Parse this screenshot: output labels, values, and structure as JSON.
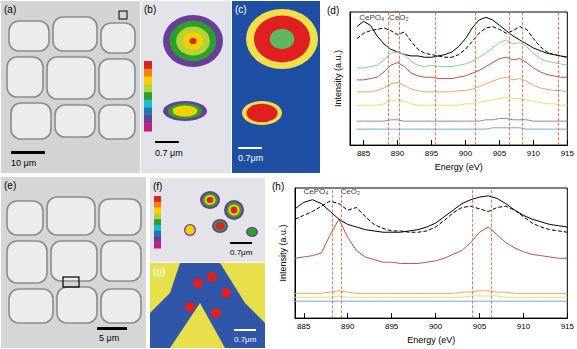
{
  "panels": [
    {
      "label": "(a)",
      "scale_bar": "10 μm"
    },
    {
      "label": "(b)",
      "scale_bar": "0.7 μm"
    },
    {
      "label": "(c)",
      "scale_bar": "0.7μm"
    },
    {
      "label": "(e)",
      "scale_bar": "5 μm"
    },
    {
      "label": "(f)",
      "scale_bar": "0.7μm"
    },
    {
      "label": "(g)",
      "scale_bar": "0.7μm"
    }
  ],
  "chart_data": [
    {
      "type": "line",
      "title": "(d)",
      "x_label": "Energy (eV)",
      "y_label": "Intensity (a.u.)",
      "x": [
        884,
        885,
        886,
        887,
        888,
        889,
        890,
        891,
        892,
        893,
        894,
        895,
        896,
        897,
        898,
        899,
        900,
        901,
        902,
        903,
        904,
        905,
        906,
        907,
        908,
        909,
        910,
        911,
        912,
        913,
        914,
        915
      ],
      "xlim": [
        883,
        915
      ],
      "xticks": [
        885,
        890,
        895,
        900,
        905,
        910,
        915
      ],
      "ylim": [
        0,
        10
      ],
      "tick_labels": "x",
      "grid": false,
      "series": [
        {
          "color": "#000000",
          "line_style": "solid",
          "values": [
            8.9,
            9.3,
            9.0,
            8.2,
            7.6,
            7.2,
            7.0,
            6.8,
            6.7,
            6.7,
            6.6,
            6.6,
            6.7,
            6.8,
            7.0,
            7.4,
            8.0,
            8.8,
            9.4,
            9.6,
            9.4,
            9.0,
            8.6,
            8.2,
            7.9,
            7.6,
            7.3,
            7.1,
            6.9,
            6.8,
            6.7,
            6.6
          ]
        },
        {
          "color": "#000000",
          "line_style": "dashed",
          "values": [
            8.0,
            8.4,
            8.6,
            8.7,
            8.8,
            8.6,
            8.3,
            8.5,
            7.8,
            7.2,
            6.9,
            6.8,
            6.7,
            6.6,
            6.6,
            6.8,
            7.2,
            7.8,
            8.4,
            8.8,
            8.9,
            8.7,
            8.4,
            8.6,
            8.9,
            8.7,
            8.0,
            7.4,
            7.0,
            6.8,
            6.7,
            6.6
          ]
        },
        {
          "color": "#86d486",
          "line_style": "solid",
          "values": [
            5.8,
            5.8,
            5.9,
            6.0,
            6.4,
            6.9,
            7.0,
            6.8,
            6.3,
            6.0,
            5.9,
            6.0,
            5.9,
            5.9,
            5.9,
            6.0,
            6.1,
            6.3,
            6.6,
            6.9,
            7.3,
            7.7,
            7.9,
            7.6,
            7.7,
            7.4,
            6.9,
            6.5,
            6.3,
            6.2,
            6.1,
            6.0
          ]
        },
        {
          "color": "#c0504d",
          "line_style": "solid",
          "values": [
            4.9,
            4.9,
            5.0,
            5.1,
            5.5,
            6.0,
            6.2,
            5.9,
            5.4,
            5.2,
            5.1,
            5.1,
            5.0,
            5.0,
            5.0,
            5.1,
            5.2,
            5.4,
            5.6,
            5.9,
            6.2,
            6.5,
            6.6,
            6.4,
            6.5,
            6.2,
            5.8,
            5.5,
            5.3,
            5.2,
            5.1,
            5.1
          ]
        },
        {
          "color": "#f4a460",
          "line_style": "solid",
          "values": [
            4.0,
            4.0,
            4.0,
            4.1,
            4.3,
            4.6,
            4.7,
            4.5,
            4.2,
            4.1,
            4.0,
            4.0,
            4.0,
            4.0,
            4.0,
            4.1,
            4.1,
            4.2,
            4.4,
            4.6,
            4.8,
            5.0,
            5.1,
            4.9,
            5.0,
            4.8,
            4.5,
            4.3,
            4.2,
            4.1,
            4.1,
            4.0
          ]
        },
        {
          "color": "#e8e070",
          "line_style": "solid",
          "values": [
            3.0,
            3.0,
            3.0,
            3.0,
            3.1,
            3.3,
            3.4,
            3.3,
            3.1,
            3.0,
            3.0,
            3.0,
            3.0,
            3.0,
            3.0,
            3.0,
            3.1,
            3.1,
            3.2,
            3.3,
            3.4,
            3.5,
            3.6,
            3.5,
            3.5,
            3.4,
            3.3,
            3.2,
            3.1,
            3.1,
            3.0,
            3.0
          ]
        },
        {
          "color": "#9a7fc8",
          "line_style": "solid",
          "values": [
            1.8,
            1.8,
            1.8,
            1.8,
            1.8,
            1.9,
            1.9,
            1.8,
            1.8,
            1.8,
            1.8,
            1.8,
            1.8,
            1.8,
            1.8,
            1.8,
            1.8,
            1.8,
            1.8,
            1.9,
            1.9,
            2.0,
            2.0,
            1.9,
            1.9,
            1.9,
            1.8,
            1.8,
            1.8,
            1.8,
            1.8,
            1.8
          ]
        },
        {
          "color": "#6fa8dc",
          "line_style": "solid",
          "values": [
            1.2,
            1.2,
            1.2,
            1.2,
            1.2,
            1.2,
            1.2,
            1.2,
            1.2,
            1.2,
            1.2,
            1.2,
            1.2,
            1.2,
            1.2,
            1.2,
            1.2,
            1.2,
            1.2,
            1.2,
            1.3,
            1.3,
            1.3,
            1.3,
            1.3,
            1.2,
            1.2,
            1.2,
            1.2,
            1.2,
            1.2,
            1.2
          ]
        }
      ],
      "reference_lines": [
        888.6,
        890.2,
        895.5,
        901.5,
        906.5,
        908.4,
        913.6
      ],
      "annotations": [
        {
          "text": "CePO₄",
          "x": 886.2,
          "y": 9.6
        },
        {
          "text": "CeO₂",
          "x": 890.2,
          "y": 9.6
        }
      ]
    },
    {
      "type": "line",
      "title": "(h)",
      "x_label": "Energy (eV)",
      "y_label": "Intensity (a.u.)",
      "x": [
        884,
        885,
        886,
        887,
        888,
        889,
        890,
        891,
        892,
        893,
        894,
        895,
        896,
        897,
        898,
        899,
        900,
        901,
        902,
        903,
        904,
        905,
        906,
        907,
        908,
        909,
        910,
        911,
        912,
        913,
        914,
        915
      ],
      "xlim": [
        884,
        915
      ],
      "xticks": [
        885,
        890,
        895,
        900,
        905,
        910,
        915
      ],
      "ylim": [
        0,
        10
      ],
      "tick_labels": "x",
      "grid": false,
      "series": [
        {
          "color": "#000000",
          "line_style": "solid",
          "values": [
            8.4,
            8.9,
            9.1,
            8.8,
            8.2,
            7.6,
            7.2,
            7.0,
            6.8,
            6.7,
            6.6,
            6.6,
            6.6,
            6.7,
            6.8,
            7.0,
            7.3,
            7.8,
            8.3,
            8.8,
            9.1,
            9.3,
            9.4,
            9.2,
            8.8,
            8.3,
            7.9,
            7.6,
            7.4,
            7.2,
            7.1,
            7.0
          ]
        },
        {
          "color": "#000000",
          "line_style": "dashed",
          "values": [
            7.6,
            7.9,
            8.2,
            8.6,
            9.0,
            8.8,
            8.3,
            8.5,
            7.8,
            7.2,
            6.9,
            6.7,
            6.7,
            6.6,
            6.6,
            6.7,
            7.0,
            7.5,
            8.1,
            8.5,
            8.6,
            8.4,
            8.2,
            8.5,
            8.6,
            8.3,
            7.8,
            7.3,
            7.0,
            6.8,
            6.7,
            6.6
          ]
        },
        {
          "color": "#c0504d",
          "line_style": "solid",
          "values": [
            4.6,
            4.7,
            4.8,
            5.0,
            6.4,
            7.6,
            6.2,
            5.2,
            4.7,
            4.5,
            4.3,
            4.3,
            4.2,
            4.2,
            4.2,
            4.3,
            4.4,
            4.6,
            4.9,
            5.2,
            5.8,
            6.6,
            7.0,
            6.4,
            5.8,
            5.4,
            5.1,
            4.9,
            4.8,
            4.7,
            4.6,
            4.6
          ]
        },
        {
          "color": "#f4a460",
          "line_style": "solid",
          "values": [
            1.9,
            1.9,
            1.9,
            1.9,
            2.0,
            2.1,
            2.0,
            1.9,
            1.9,
            1.9,
            1.9,
            1.9,
            1.9,
            1.9,
            1.9,
            1.9,
            1.9,
            1.9,
            1.9,
            2.0,
            2.0,
            2.1,
            2.1,
            2.0,
            2.0,
            1.9,
            1.9,
            1.9,
            1.9,
            1.9,
            1.9,
            1.9
          ]
        },
        {
          "color": "#e8e070",
          "line_style": "solid",
          "values": [
            1.6,
            1.6,
            1.6,
            1.6,
            1.6,
            1.7,
            1.6,
            1.6,
            1.6,
            1.6,
            1.6,
            1.6,
            1.6,
            1.6,
            1.6,
            1.6,
            1.6,
            1.6,
            1.6,
            1.6,
            1.7,
            1.7,
            1.7,
            1.7,
            1.6,
            1.6,
            1.6,
            1.6,
            1.6,
            1.6,
            1.6,
            1.6
          ]
        },
        {
          "color": "#6fa8dc",
          "line_style": "solid",
          "values": [
            1.3,
            1.3,
            1.3,
            1.3,
            1.3,
            1.3,
            1.3,
            1.3,
            1.3,
            1.3,
            1.3,
            1.3,
            1.3,
            1.3,
            1.3,
            1.3,
            1.3,
            1.3,
            1.3,
            1.3,
            1.3,
            1.3,
            1.3,
            1.3,
            1.3,
            1.3,
            1.3,
            1.3,
            1.3,
            1.3,
            1.3,
            1.3
          ]
        }
      ],
      "reference_lines": [
        888.2,
        889.3,
        904.2,
        906.3
      ],
      "annotations": [
        {
          "text": "CePO₄",
          "x": 886.4,
          "y": 9.7
        },
        {
          "text": "CeO₂",
          "x": 890.3,
          "y": 9.7
        }
      ]
    }
  ]
}
